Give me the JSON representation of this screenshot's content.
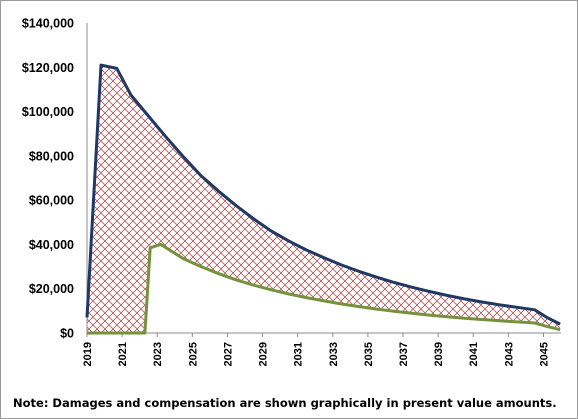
{
  "chart_data": {
    "type": "area",
    "title": "",
    "xlabel": "",
    "ylabel": "",
    "xlim": [
      2019,
      2046
    ],
    "ylim": [
      0,
      140000
    ],
    "y_ticks": [
      0,
      20000,
      40000,
      60000,
      80000,
      100000,
      120000,
      140000
    ],
    "y_tick_labels": [
      "$0",
      "$20,000",
      "$40,000",
      "$60,000",
      "$80,000",
      "$100,000",
      "$120,000",
      "$140,000"
    ],
    "x_tick_labels": [
      "2019",
      "2021",
      "2023",
      "2025",
      "2027",
      "2029",
      "2031",
      "2033",
      "2035",
      "2037",
      "2039",
      "2041",
      "2043",
      "2045"
    ],
    "grid": false,
    "legend": "none",
    "fill_between_series": "crosshatch",
    "series": [
      {
        "color": "#203864",
        "x": [
          2019,
          2019.8,
          2020.7,
          2021.5,
          2022.5,
          2023.5,
          2024.5,
          2025.5,
          2026.5,
          2027.5,
          2028.5,
          2029.5,
          2030.5,
          2031.5,
          2032.5,
          2033.5,
          2034.5,
          2035.5,
          2036.5,
          2037.5,
          2038.5,
          2039.5,
          2040.5,
          2041.5,
          2042.5,
          2043.5,
          2044.5,
          2045.2,
          2045.95
        ],
        "values": [
          7000,
          121000,
          119500,
          107500,
          98000,
          88500,
          79500,
          71000,
          64000,
          57500,
          51500,
          46000,
          41500,
          37500,
          34000,
          30700,
          27800,
          25200,
          22800,
          20700,
          18800,
          17000,
          15400,
          14000,
          12700,
          11600,
          10500,
          7000,
          4000
        ]
      },
      {
        "color": "#76923c",
        "x": [
          2019,
          2019.8,
          2020.7,
          2021.5,
          2022.3,
          2022.6,
          2023.2,
          2023.8,
          2024.5,
          2025.5,
          2026.5,
          2027.5,
          2028.5,
          2029.5,
          2030.5,
          2031.5,
          2032.5,
          2033.5,
          2034.5,
          2035.5,
          2036.5,
          2037.5,
          2038.5,
          2039.5,
          2040.5,
          2041.5,
          2042.5,
          2043.5,
          2044.5,
          2045.2,
          2045.95
        ],
        "values": [
          0,
          0,
          0,
          0,
          0,
          38500,
          40000,
          37000,
          33500,
          30000,
          26800,
          24000,
          21600,
          19500,
          17600,
          16000,
          14500,
          13100,
          11900,
          10800,
          9800,
          8900,
          8100,
          7300,
          6700,
          6100,
          5500,
          5000,
          4500,
          3000,
          1500
        ]
      }
    ]
  },
  "note": "Note: Damages and compensation are shown graphically in present value amounts."
}
